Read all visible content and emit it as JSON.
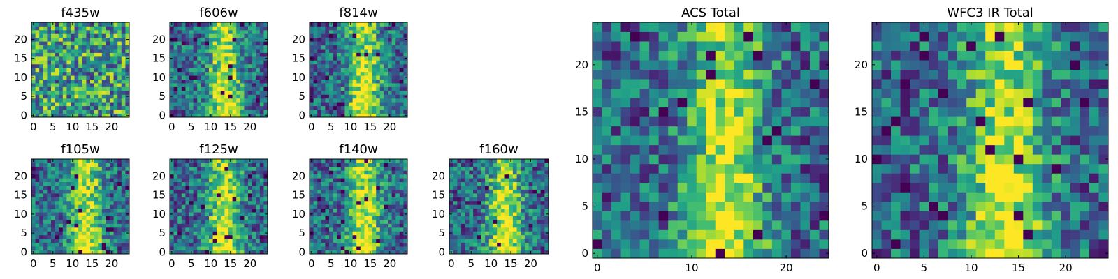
{
  "chart_data": [
    {
      "type": "heatmap",
      "title": "f435w",
      "xticks": [
        "0",
        "5",
        "10",
        "15",
        "20"
      ],
      "yticks": [
        "0",
        "5",
        "10",
        "15",
        "20"
      ],
      "xlim": [
        -0.5,
        24.5
      ],
      "ylim": [
        -0.5,
        24.5
      ],
      "grid_size": 25,
      "colormap": "viridis",
      "pattern": "noise"
    },
    {
      "type": "heatmap",
      "title": "f606w",
      "xticks": [
        "0",
        "5",
        "10",
        "15",
        "20"
      ],
      "yticks": [
        "0",
        "5",
        "10",
        "15",
        "20"
      ],
      "xlim": [
        -0.5,
        24.5
      ],
      "ylim": [
        -0.5,
        24.5
      ],
      "grid_size": 25,
      "colormap": "viridis",
      "pattern": "source"
    },
    {
      "type": "heatmap",
      "title": "f814w",
      "xticks": [
        "0",
        "5",
        "10",
        "15",
        "20"
      ],
      "yticks": [
        "0",
        "5",
        "10",
        "15",
        "20"
      ],
      "xlim": [
        -0.5,
        24.5
      ],
      "ylim": [
        -0.5,
        24.5
      ],
      "grid_size": 25,
      "colormap": "viridis",
      "pattern": "source"
    },
    {
      "type": "heatmap",
      "title": "f105w",
      "xticks": [
        "0",
        "5",
        "10",
        "15",
        "20"
      ],
      "yticks": [
        "0",
        "5",
        "10",
        "15",
        "20"
      ],
      "xlim": [
        -0.5,
        24.5
      ],
      "ylim": [
        -0.5,
        24.5
      ],
      "grid_size": 25,
      "colormap": "viridis",
      "pattern": "source"
    },
    {
      "type": "heatmap",
      "title": "f125w",
      "xticks": [
        "0",
        "5",
        "10",
        "15",
        "20"
      ],
      "yticks": [
        "0",
        "5",
        "10",
        "15",
        "20"
      ],
      "xlim": [
        -0.5,
        24.5
      ],
      "ylim": [
        -0.5,
        24.5
      ],
      "grid_size": 25,
      "colormap": "viridis",
      "pattern": "source"
    },
    {
      "type": "heatmap",
      "title": "f140w",
      "xticks": [
        "0",
        "5",
        "10",
        "15",
        "20"
      ],
      "yticks": [
        "0",
        "5",
        "10",
        "15",
        "20"
      ],
      "xlim": [
        -0.5,
        24.5
      ],
      "ylim": [
        -0.5,
        24.5
      ],
      "grid_size": 25,
      "colormap": "viridis",
      "pattern": "source"
    },
    {
      "type": "heatmap",
      "title": "f160w",
      "xticks": [
        "0",
        "5",
        "10",
        "15",
        "20"
      ],
      "yticks": [
        "0",
        "5",
        "10",
        "15",
        "20"
      ],
      "xlim": [
        -0.5,
        24.5
      ],
      "ylim": [
        -0.5,
        24.5
      ],
      "grid_size": 25,
      "colormap": "viridis",
      "pattern": "source"
    },
    {
      "type": "heatmap",
      "title": "ACS Total",
      "xticks": [
        "0",
        "10",
        "20"
      ],
      "yticks": [
        "0",
        "5",
        "10",
        "15",
        "20"
      ],
      "xlim": [
        -0.5,
        24.5
      ],
      "ylim": [
        -0.5,
        24.5
      ],
      "grid_size": 25,
      "colormap": "viridis",
      "pattern": "source"
    },
    {
      "type": "heatmap",
      "title": "WFC3 IR Total",
      "xticks": [
        "0",
        "5",
        "10",
        "15",
        "20"
      ],
      "yticks": [
        "0",
        "5",
        "10",
        "15",
        "20"
      ],
      "xlim": [
        -0.5,
        24.5
      ],
      "ylim": [
        -0.5,
        24.5
      ],
      "grid_size": 25,
      "colormap": "viridis",
      "pattern": "source"
    }
  ]
}
